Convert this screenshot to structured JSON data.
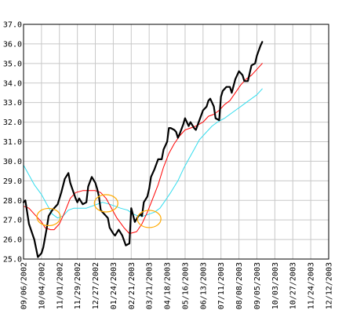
{
  "chart_data": {
    "type": "line",
    "title": "",
    "xlabel": "",
    "ylabel": "",
    "ylim": [
      25.0,
      37.0
    ],
    "y_ticks": [
      "25.0",
      "26.0",
      "27.0",
      "28.0",
      "29.0",
      "30.0",
      "31.0",
      "32.0",
      "33.0",
      "34.0",
      "35.0",
      "36.0",
      "37.0"
    ],
    "x_tick_labels": [
      "09/06/2002",
      "10/04/2002",
      "11/01/2002",
      "11/29/2002",
      "12/27/2002",
      "01/24/2003",
      "02/21/2003",
      "03/21/2003",
      "04/18/2003",
      "05/16/2003",
      "06/13/2003",
      "07/11/2003",
      "08/08/2003",
      "09/05/2003",
      "10/03/2003",
      "10/27/2003",
      "11/24/2003",
      "12/12/2003"
    ],
    "grid": true,
    "series": [
      {
        "color": "#000000",
        "style": "price",
        "points": [
          [
            0,
            27.9
          ],
          [
            0.1,
            28.0
          ],
          [
            0.3,
            26.8
          ],
          [
            0.6,
            26.0
          ],
          [
            0.8,
            25.1
          ],
          [
            1.0,
            25.3
          ],
          [
            1.1,
            25.6
          ],
          [
            1.3,
            26.6
          ],
          [
            1.4,
            27.2
          ],
          [
            1.6,
            27.5
          ],
          [
            1.9,
            27.8
          ],
          [
            2.1,
            28.4
          ],
          [
            2.3,
            29.1
          ],
          [
            2.5,
            29.4
          ],
          [
            2.6,
            28.9
          ],
          [
            2.9,
            28.1
          ],
          [
            3.0,
            27.9
          ],
          [
            3.1,
            28.1
          ],
          [
            3.3,
            27.8
          ],
          [
            3.5,
            27.9
          ],
          [
            3.6,
            28.7
          ],
          [
            3.8,
            29.2
          ],
          [
            4.0,
            28.9
          ],
          [
            4.1,
            28.6
          ],
          [
            4.2,
            28.2
          ],
          [
            4.3,
            27.5
          ],
          [
            4.5,
            27.3
          ],
          [
            4.7,
            27.1
          ],
          [
            4.8,
            26.6
          ],
          [
            5.0,
            26.3
          ],
          [
            5.1,
            26.2
          ],
          [
            5.3,
            26.5
          ],
          [
            5.5,
            26.2
          ],
          [
            5.7,
            25.7
          ],
          [
            5.9,
            25.8
          ],
          [
            6.0,
            27.6
          ],
          [
            6.2,
            26.9
          ],
          [
            6.4,
            27.2
          ],
          [
            6.5,
            27.3
          ],
          [
            6.6,
            27.2
          ],
          [
            6.7,
            27.9
          ],
          [
            6.9,
            28.2
          ],
          [
            7.0,
            28.6
          ],
          [
            7.1,
            29.2
          ],
          [
            7.3,
            29.6
          ],
          [
            7.5,
            30.1
          ],
          [
            7.7,
            30.1
          ],
          [
            7.8,
            30.6
          ],
          [
            8.0,
            31.0
          ],
          [
            8.1,
            31.7
          ],
          [
            8.2,
            31.7
          ],
          [
            8.4,
            31.6
          ],
          [
            8.5,
            31.5
          ],
          [
            8.6,
            31.2
          ],
          [
            8.7,
            31.4
          ],
          [
            8.9,
            31.9
          ],
          [
            9.0,
            32.2
          ],
          [
            9.2,
            31.8
          ],
          [
            9.3,
            32.0
          ],
          [
            9.5,
            31.7
          ],
          [
            9.6,
            31.6
          ],
          [
            9.8,
            32.1
          ],
          [
            10.0,
            32.6
          ],
          [
            10.2,
            32.8
          ],
          [
            10.3,
            33.1
          ],
          [
            10.4,
            33.2
          ],
          [
            10.6,
            32.8
          ],
          [
            10.7,
            32.2
          ],
          [
            10.9,
            32.1
          ],
          [
            11.0,
            33.3
          ],
          [
            11.1,
            33.6
          ],
          [
            11.3,
            33.8
          ],
          [
            11.5,
            33.8
          ],
          [
            11.6,
            33.5
          ],
          [
            11.8,
            34.2
          ],
          [
            11.9,
            34.4
          ],
          [
            12.0,
            34.6
          ],
          [
            12.2,
            34.4
          ],
          [
            12.3,
            34.1
          ],
          [
            12.5,
            34.1
          ],
          [
            12.6,
            34.5
          ],
          [
            12.7,
            34.9
          ],
          [
            12.9,
            35.0
          ],
          [
            13.0,
            35.4
          ],
          [
            13.2,
            35.9
          ],
          [
            13.3,
            36.1
          ]
        ]
      },
      {
        "color": "#ff0000",
        "style": "short moving average",
        "points": [
          [
            0,
            27.7
          ],
          [
            0.3,
            27.6
          ],
          [
            0.6,
            27.3
          ],
          [
            1.0,
            26.9
          ],
          [
            1.2,
            26.6
          ],
          [
            1.5,
            26.5
          ],
          [
            1.7,
            26.5
          ],
          [
            2.0,
            26.8
          ],
          [
            2.3,
            27.4
          ],
          [
            2.6,
            28.1
          ],
          [
            2.9,
            28.4
          ],
          [
            3.3,
            28.5
          ],
          [
            3.7,
            28.5
          ],
          [
            4.0,
            28.5
          ],
          [
            4.3,
            28.4
          ],
          [
            4.6,
            28.1
          ],
          [
            4.9,
            27.6
          ],
          [
            5.2,
            27.1
          ],
          [
            5.6,
            26.6
          ],
          [
            5.9,
            26.3
          ],
          [
            6.3,
            26.4
          ],
          [
            6.6,
            26.8
          ],
          [
            6.9,
            27.4
          ],
          [
            7.2,
            28.1
          ],
          [
            7.5,
            28.8
          ],
          [
            7.8,
            29.7
          ],
          [
            8.1,
            30.4
          ],
          [
            8.4,
            30.9
          ],
          [
            8.7,
            31.3
          ],
          [
            9.0,
            31.6
          ],
          [
            9.3,
            31.7
          ],
          [
            9.6,
            31.8
          ],
          [
            10.0,
            32.0
          ],
          [
            10.3,
            32.3
          ],
          [
            10.6,
            32.4
          ],
          [
            10.9,
            32.6
          ],
          [
            11.2,
            32.9
          ],
          [
            11.5,
            33.1
          ],
          [
            11.8,
            33.5
          ],
          [
            12.1,
            33.9
          ],
          [
            12.4,
            34.2
          ],
          [
            12.7,
            34.4
          ],
          [
            13.0,
            34.7
          ],
          [
            13.3,
            35.0
          ]
        ]
      },
      {
        "color": "#33ddee",
        "style": "long moving average",
        "points": [
          [
            0,
            29.8
          ],
          [
            0.3,
            29.3
          ],
          [
            0.6,
            28.8
          ],
          [
            1.0,
            28.3
          ],
          [
            1.3,
            27.8
          ],
          [
            1.6,
            27.3
          ],
          [
            1.9,
            27.1
          ],
          [
            2.2,
            27.2
          ],
          [
            2.5,
            27.5
          ],
          [
            2.8,
            27.6
          ],
          [
            3.2,
            27.6
          ],
          [
            3.5,
            27.6
          ],
          [
            3.8,
            27.7
          ],
          [
            4.1,
            27.8
          ],
          [
            4.4,
            27.9
          ],
          [
            4.8,
            27.8
          ],
          [
            5.1,
            27.7
          ],
          [
            5.4,
            27.6
          ],
          [
            5.8,
            27.5
          ],
          [
            6.1,
            27.3
          ],
          [
            6.4,
            27.2
          ],
          [
            6.7,
            27.2
          ],
          [
            7.0,
            27.3
          ],
          [
            7.3,
            27.4
          ],
          [
            7.6,
            27.6
          ],
          [
            7.9,
            28.0
          ],
          [
            8.2,
            28.4
          ],
          [
            8.6,
            29.0
          ],
          [
            8.9,
            29.6
          ],
          [
            9.2,
            30.1
          ],
          [
            9.5,
            30.6
          ],
          [
            9.8,
            31.1
          ],
          [
            10.2,
            31.5
          ],
          [
            10.5,
            31.8
          ],
          [
            10.8,
            32.0
          ],
          [
            11.2,
            32.2
          ],
          [
            11.5,
            32.4
          ],
          [
            11.8,
            32.6
          ],
          [
            12.1,
            32.8
          ],
          [
            12.4,
            33.0
          ],
          [
            12.7,
            33.2
          ],
          [
            13.0,
            33.4
          ],
          [
            13.3,
            33.7
          ]
        ]
      }
    ],
    "annotations": [
      {
        "shape": "ellipse",
        "color": "#ffaa00",
        "cx": 1.4,
        "cy": 27.15
      },
      {
        "shape": "ellipse",
        "color": "#ffaa00",
        "cx": 4.6,
        "cy": 27.85
      },
      {
        "shape": "ellipse",
        "color": "#ffaa00",
        "cx": 7.0,
        "cy": 27.05
      }
    ]
  }
}
